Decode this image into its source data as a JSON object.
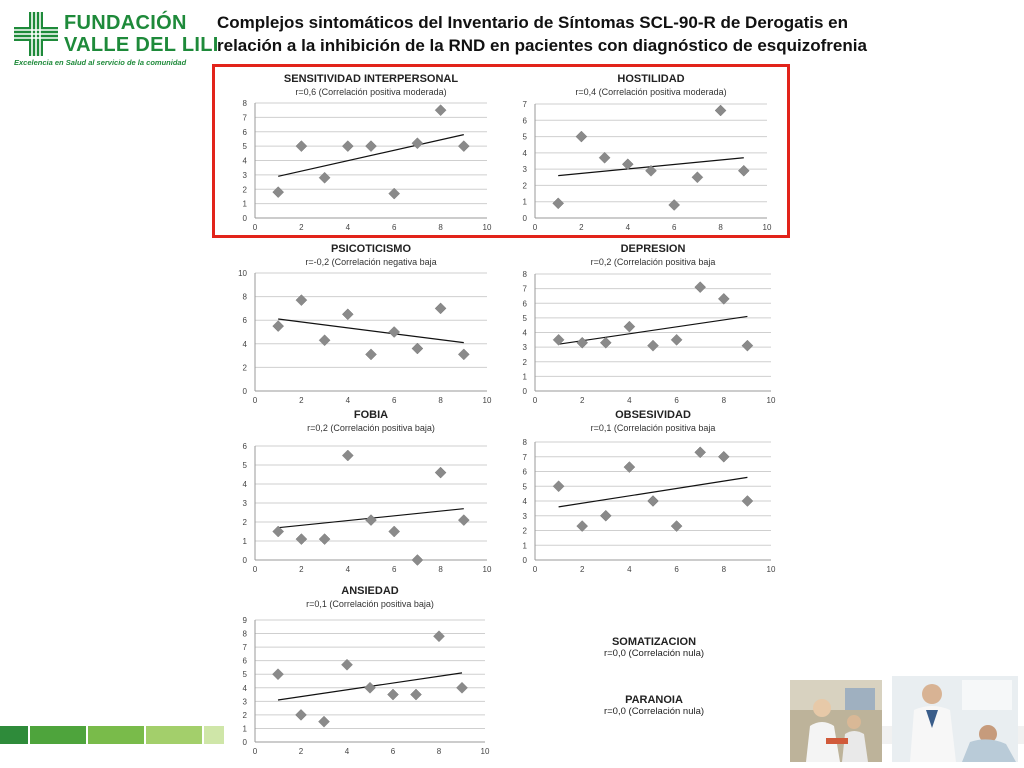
{
  "header": {
    "logo_name_line1": "FUNDACIÓN",
    "logo_name_line2": "VALLE DEL LILI",
    "logo_tagline": "Excelencia en Salud al servicio de la comunidad",
    "title": "Complejos sintomáticos del Inventario de Síntomas SCL-90-R de Derogatis  en\nrelación a la inhibición de la RND en pacientes con diagnóstico de esquizofrenia"
  },
  "colors": {
    "brand_green": "#1e8a3a",
    "highlight_red": "#e2231a",
    "marker_gray": "#8a8a8a",
    "grid": "#cfcfcf",
    "trend": "#111111"
  },
  "chart_data": [
    {
      "type": "scatter",
      "title": "SENSITIVIDAD INTERPERSONAL",
      "subtitle": "r=0,6 (Correlación positiva moderada)",
      "xlim": [
        0,
        10
      ],
      "ylim": [
        0,
        8
      ],
      "xticks": [
        0,
        2,
        4,
        6,
        8,
        10
      ],
      "yticks": [
        0,
        1,
        2,
        3,
        4,
        5,
        6,
        7,
        8
      ],
      "points": [
        [
          1,
          1.8
        ],
        [
          2,
          5
        ],
        [
          3,
          2.8
        ],
        [
          4,
          5
        ],
        [
          5,
          5
        ],
        [
          6,
          1.7
        ],
        [
          7,
          5.2
        ],
        [
          8,
          7.5
        ],
        [
          9,
          5
        ]
      ],
      "trendline": [
        [
          1,
          2.9
        ],
        [
          9,
          5.8
        ]
      ]
    },
    {
      "type": "scatter",
      "title": "HOSTILIDAD",
      "subtitle": "r=0,4 (Correlación positiva moderada)",
      "xlim": [
        0,
        10
      ],
      "ylim": [
        0,
        7
      ],
      "xticks": [
        0,
        2,
        4,
        6,
        8,
        10
      ],
      "yticks": [
        0,
        1,
        2,
        3,
        4,
        5,
        6,
        7
      ],
      "points": [
        [
          1,
          0.9
        ],
        [
          2,
          5
        ],
        [
          3,
          3.7
        ],
        [
          4,
          3.3
        ],
        [
          5,
          2.9
        ],
        [
          6,
          0.8
        ],
        [
          7,
          2.5
        ],
        [
          8,
          6.6
        ],
        [
          9,
          2.9
        ]
      ],
      "trendline": [
        [
          1,
          2.6
        ],
        [
          9,
          3.7
        ]
      ]
    },
    {
      "type": "scatter",
      "title": "PSICOTICISMO",
      "subtitle": "r=-0,2 (Correlación negativa baja",
      "xlim": [
        0,
        10
      ],
      "ylim": [
        0,
        10
      ],
      "xticks": [
        0,
        2,
        4,
        6,
        8,
        10
      ],
      "yticks": [
        0,
        2,
        4,
        6,
        8,
        10
      ],
      "points": [
        [
          1,
          5.5
        ],
        [
          2,
          7.7
        ],
        [
          3,
          4.3
        ],
        [
          4,
          6.5
        ],
        [
          5,
          3.1
        ],
        [
          6,
          5
        ],
        [
          7,
          3.6
        ],
        [
          8,
          7
        ],
        [
          9,
          3.1
        ]
      ],
      "trendline": [
        [
          1,
          6.1
        ],
        [
          9,
          4.1
        ]
      ]
    },
    {
      "type": "scatter",
      "title": "DEPRESION",
      "subtitle": "r=0,2 (Correlación positiva baja",
      "xlim": [
        0,
        10
      ],
      "ylim": [
        0,
        8
      ],
      "xticks": [
        0,
        2,
        4,
        6,
        8,
        10
      ],
      "yticks": [
        0,
        1,
        2,
        3,
        4,
        5,
        6,
        7,
        8
      ],
      "points": [
        [
          1,
          3.5
        ],
        [
          2,
          3.3
        ],
        [
          3,
          3.3
        ],
        [
          4,
          4.4
        ],
        [
          5,
          3.1
        ],
        [
          6,
          3.5
        ],
        [
          7,
          7.1
        ],
        [
          8,
          6.3
        ],
        [
          9,
          3.1
        ]
      ],
      "trendline": [
        [
          1,
          3.2
        ],
        [
          9,
          5.1
        ]
      ]
    },
    {
      "type": "scatter",
      "title": "FOBIA",
      "subtitle": "r=0,2 (Correlación positiva baja)",
      "xlim": [
        0,
        10
      ],
      "ylim": [
        0,
        6
      ],
      "xticks": [
        0,
        2,
        4,
        6,
        8,
        10
      ],
      "yticks": [
        0,
        1,
        2,
        3,
        4,
        5,
        6
      ],
      "points": [
        [
          1,
          1.5
        ],
        [
          2,
          1.1
        ],
        [
          3,
          1.1
        ],
        [
          4,
          5.5
        ],
        [
          5,
          2.1
        ],
        [
          6,
          1.5
        ],
        [
          7,
          0
        ],
        [
          8,
          4.6
        ],
        [
          9,
          2.1
        ]
      ],
      "trendline": [
        [
          1,
          1.7
        ],
        [
          9,
          2.7
        ]
      ]
    },
    {
      "type": "scatter",
      "title": "OBSESIVIDAD",
      "subtitle": "r=0,1 (Correlación positiva baja",
      "xlim": [
        0,
        10
      ],
      "ylim": [
        0,
        8
      ],
      "xticks": [
        0,
        2,
        4,
        6,
        8,
        10
      ],
      "yticks": [
        0,
        1,
        2,
        3,
        4,
        5,
        6,
        7,
        8
      ],
      "points": [
        [
          1,
          5
        ],
        [
          2,
          2.3
        ],
        [
          3,
          3
        ],
        [
          4,
          6.3
        ],
        [
          5,
          4
        ],
        [
          6,
          2.3
        ],
        [
          7,
          7.3
        ],
        [
          8,
          7
        ],
        [
          9,
          4
        ]
      ],
      "trendline": [
        [
          1,
          3.6
        ],
        [
          9,
          5.6
        ]
      ]
    },
    {
      "type": "scatter",
      "title": "ANSIEDAD",
      "subtitle": "r=0,1 (Correlación positiva baja)",
      "xlim": [
        0,
        10
      ],
      "ylim": [
        0,
        9
      ],
      "xticks": [
        0,
        2,
        4,
        6,
        8,
        10
      ],
      "yticks": [
        0,
        1,
        2,
        3,
        4,
        5,
        6,
        7,
        8,
        9
      ],
      "points": [
        [
          1,
          5
        ],
        [
          2,
          2
        ],
        [
          3,
          1.5
        ],
        [
          4,
          5.7
        ],
        [
          5,
          4
        ],
        [
          6,
          3.5
        ],
        [
          7,
          3.5
        ],
        [
          8,
          7.8
        ],
        [
          9,
          4
        ]
      ],
      "trendline": [
        [
          1,
          3.1
        ],
        [
          9,
          5.1
        ]
      ]
    }
  ],
  "notes": [
    {
      "title": "SOMATIZACION",
      "subtitle": "r=0,0 (Correlación nula)"
    },
    {
      "title": "PARANOIA",
      "subtitle": "r=0,0 (Correlación nula)"
    }
  ],
  "photos": [
    {
      "icon": "lab-workers-photo"
    },
    {
      "icon": "doctor-patient-photo"
    }
  ]
}
